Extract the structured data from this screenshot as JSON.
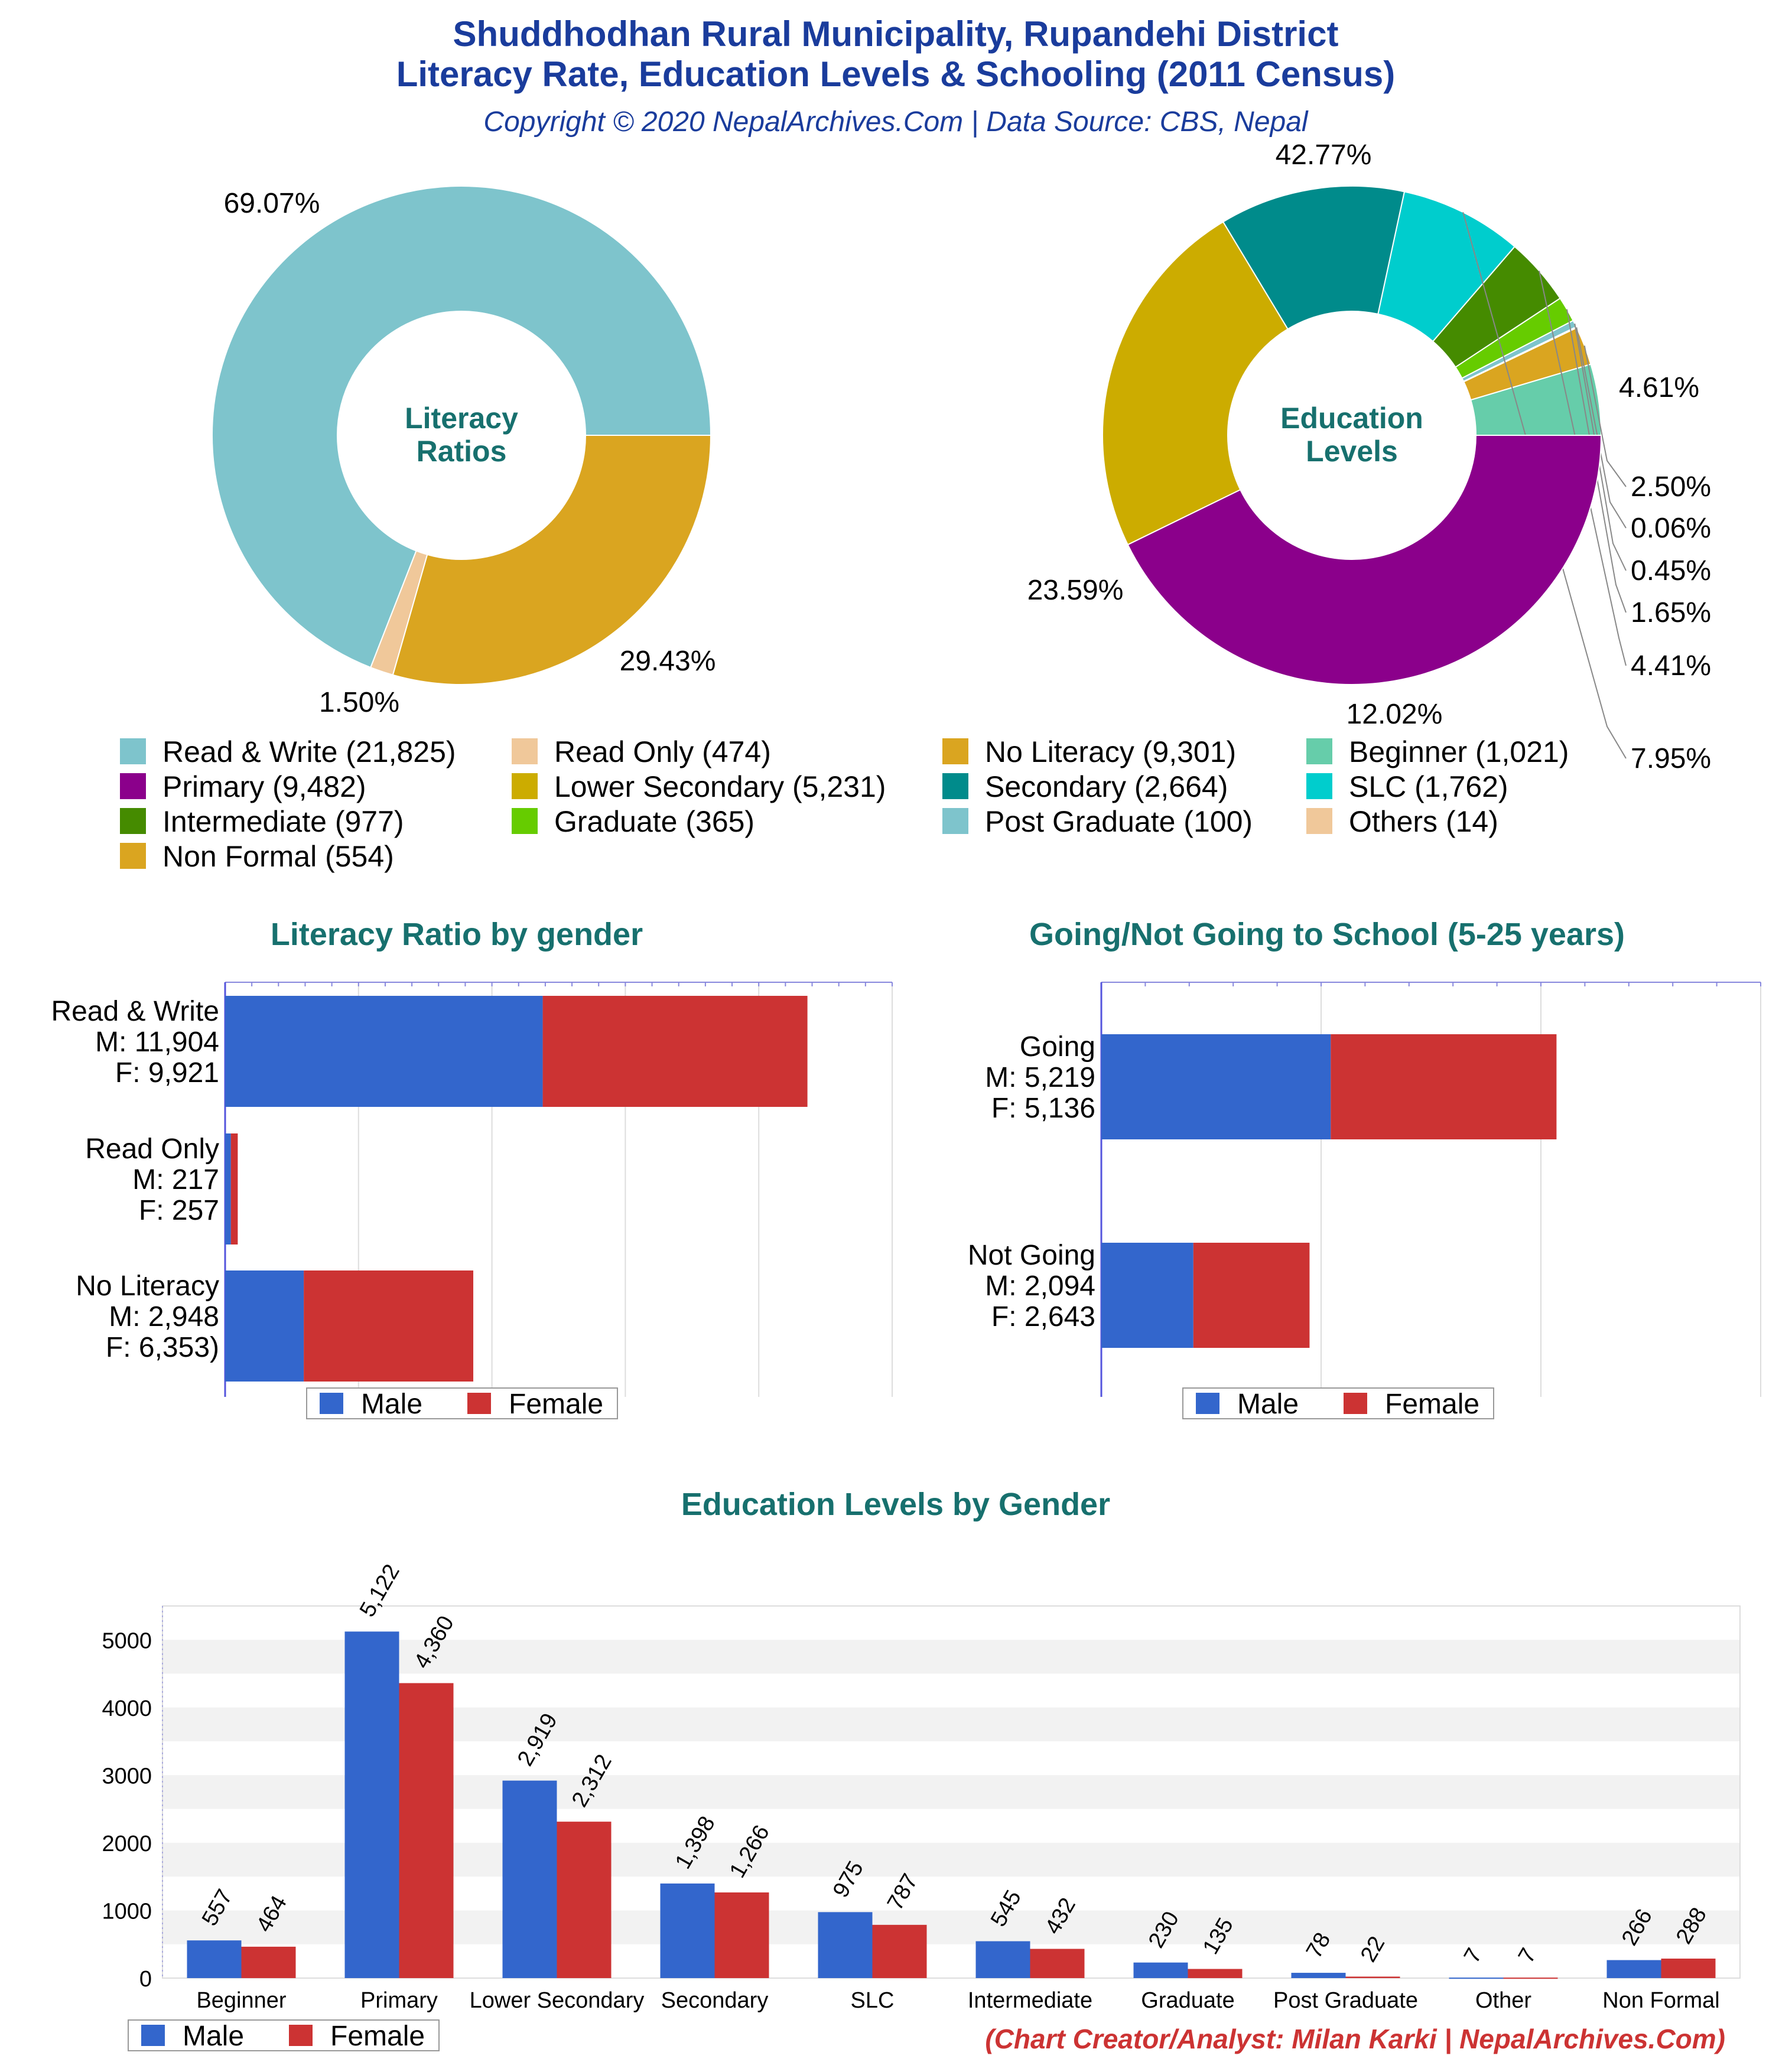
{
  "header": {
    "title_line1": "Shuddhodhan Rural Municipality, Rupandehi District",
    "title_line2": "Literacy Rate, Education Levels & Schooling (2011 Census)",
    "copyright": "Copyright © 2020 NepalArchives.Com | Data Source: CBS, Nepal"
  },
  "footer": {
    "credit": "(Chart Creator/Analyst: Milan Karki | NepalArchives.Com)"
  },
  "colors": {
    "male": "#3366cc",
    "female": "#cc3333",
    "title": "#1a3c9c",
    "section": "#17706e"
  },
  "chart_data": [
    {
      "type": "pie",
      "center_label": [
        "Literacy",
        "Ratios"
      ],
      "slices": [
        {
          "label": "Read & Write",
          "value": 21825,
          "percent": "69.07%",
          "color": "#7ec4cc"
        },
        {
          "label": "Read Only",
          "value": 474,
          "percent": "1.50%",
          "color": "#f0c89a"
        },
        {
          "label": "No Literacy",
          "value": 9301,
          "percent": "29.43%",
          "color": "#daa520"
        }
      ]
    },
    {
      "type": "pie",
      "center_label": [
        "Education",
        "Levels"
      ],
      "slices": [
        {
          "label": "Beginner",
          "value": 1021,
          "percent": "4.61%",
          "color": "#66cdaa"
        },
        {
          "label": "Non Formal",
          "value": 554,
          "percent": "2.50%",
          "color": "#daa520"
        },
        {
          "label": "Others",
          "value": 14,
          "percent": "0.06%",
          "color": "#f0c89a"
        },
        {
          "label": "Post Graduate",
          "value": 100,
          "percent": "0.45%",
          "color": "#7ec4cc"
        },
        {
          "label": "Graduate",
          "value": 365,
          "percent": "1.65%",
          "color": "#66cc00"
        },
        {
          "label": "Intermediate",
          "value": 977,
          "percent": "4.41%",
          "color": "#458b00"
        },
        {
          "label": "SLC",
          "value": 1762,
          "percent": "7.95%",
          "color": "#00cdcd"
        },
        {
          "label": "Secondary",
          "value": 2664,
          "percent": "12.02%",
          "color": "#008b8b"
        },
        {
          "label": "Lower Secondary",
          "value": 5231,
          "percent": "23.59%",
          "color": "#ccac00"
        },
        {
          "label": "Primary",
          "value": 9482,
          "percent": "42.77%",
          "color": "#8b008b"
        }
      ]
    },
    {
      "type": "bar",
      "orientation": "horizontal",
      "stacked": true,
      "title": "Literacy Ratio by gender",
      "categories": [
        "Read & Write",
        "Read Only",
        "No Literacy"
      ],
      "category_labels": [
        [
          "Read & Write",
          "M: 11,904",
          "F: 9,921"
        ],
        [
          "Read Only",
          "M: 217",
          "F: 257"
        ],
        [
          "No Literacy",
          "M: 2,948",
          "F: 6,353)"
        ]
      ],
      "series": [
        {
          "name": "Male",
          "values": [
            11904,
            217,
            2948
          ]
        },
        {
          "name": "Female",
          "values": [
            9921,
            257,
            6353
          ]
        }
      ],
      "xlim": [
        0,
        25000
      ],
      "legend": "bottom"
    },
    {
      "type": "bar",
      "orientation": "horizontal",
      "stacked": true,
      "title": "Going/Not Going to School (5-25 years)",
      "categories": [
        "Going",
        "Not Going"
      ],
      "category_labels": [
        [
          "Going",
          "M: 5,219",
          "F: 5,136"
        ],
        [
          "Not Going",
          "M: 2,094",
          "F: 2,643"
        ]
      ],
      "series": [
        {
          "name": "Male",
          "values": [
            5219,
            2094
          ]
        },
        {
          "name": "Female",
          "values": [
            5136,
            2643
          ]
        }
      ],
      "xlim": [
        0,
        15000
      ],
      "legend": "bottom"
    },
    {
      "type": "bar",
      "title": "Education Levels by Gender",
      "categories": [
        "Beginner",
        "Primary",
        "Lower Secondary",
        "Secondary",
        "SLC",
        "Intermediate",
        "Graduate",
        "Post Graduate",
        "Other",
        "Non Formal"
      ],
      "series": [
        {
          "name": "Male",
          "values": [
            557,
            5122,
            2919,
            1398,
            975,
            545,
            230,
            78,
            7,
            266
          ]
        },
        {
          "name": "Female",
          "values": [
            464,
            4360,
            2312,
            1266,
            787,
            432,
            135,
            22,
            7,
            288
          ]
        }
      ],
      "value_labels": {
        "Male": [
          "557",
          "5,122",
          "2,919",
          "1,398",
          "975",
          "545",
          "230",
          "78",
          "7",
          "266"
        ],
        "Female": [
          "464",
          "4,360",
          "2,312",
          "1,266",
          "787",
          "432",
          "135",
          "22",
          "7",
          "288"
        ]
      },
      "yticks": [
        "0",
        "1000",
        "2000",
        "3000",
        "4000",
        "5000"
      ],
      "ylim": [
        0,
        5500
      ],
      "grid": true,
      "legend": "bottom-left"
    }
  ],
  "legend_top": [
    {
      "label": "Read & Write (21,825)",
      "color": "#7ec4cc"
    },
    {
      "label": "Read Only (474)",
      "color": "#f0c89a"
    },
    {
      "label": "No Literacy (9,301)",
      "color": "#daa520"
    },
    {
      "label": "Beginner (1,021)",
      "color": "#66cdaa"
    },
    {
      "label": "Primary (9,482)",
      "color": "#8b008b"
    },
    {
      "label": "Lower Secondary (5,231)",
      "color": "#ccac00"
    },
    {
      "label": "Secondary (2,664)",
      "color": "#008b8b"
    },
    {
      "label": "SLC (1,762)",
      "color": "#00cdcd"
    },
    {
      "label": "Intermediate (977)",
      "color": "#458b00"
    },
    {
      "label": "Graduate (365)",
      "color": "#66cc00"
    },
    {
      "label": "Post Graduate (100)",
      "color": "#7ec4cc"
    },
    {
      "label": "Others (14)",
      "color": "#f0c89a"
    },
    {
      "label": "Non Formal (554)",
      "color": "#daa520"
    }
  ]
}
